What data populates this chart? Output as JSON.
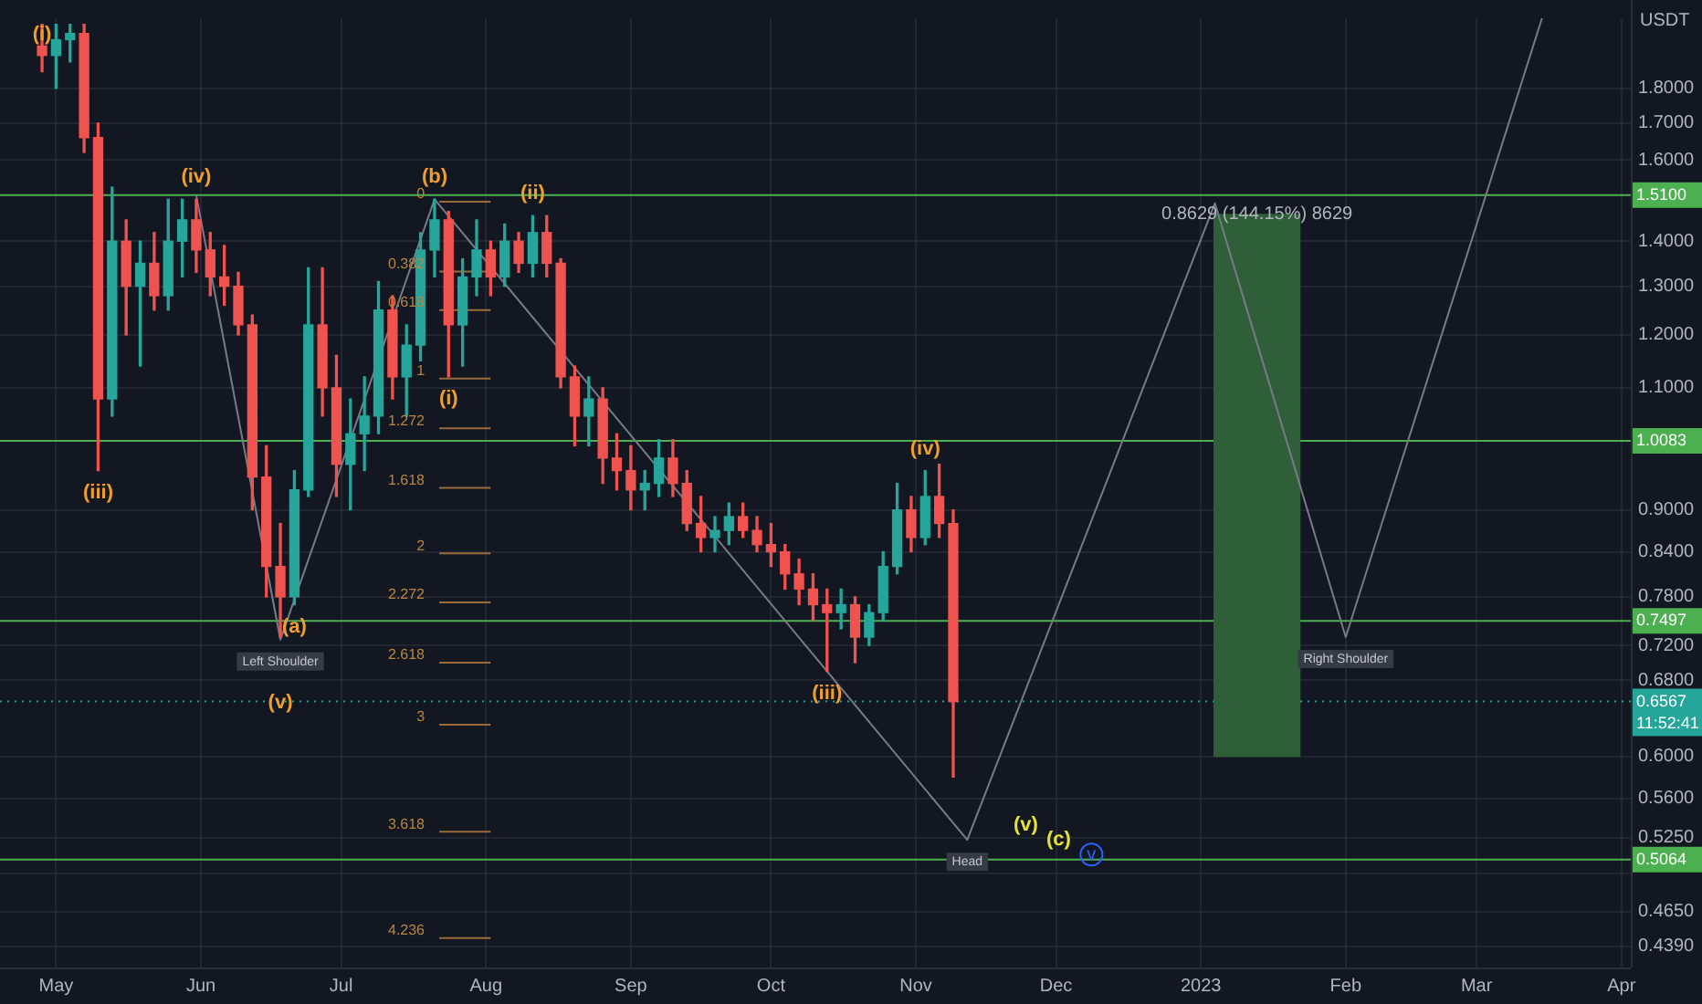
{
  "chart_data": {
    "type": "candlestick",
    "ylabel": "USDT",
    "log": "y",
    "grid": true,
    "xlim": [
      "2022-04-19",
      "2023-04-03"
    ],
    "xticks": [
      {
        "value": "2022-05-01",
        "label": "May"
      },
      {
        "value": "2022-06-01",
        "label": "Jun"
      },
      {
        "value": "2022-07-01",
        "label": "Jul"
      },
      {
        "value": "2022-08-01",
        "label": "Aug"
      },
      {
        "value": "2022-09-01",
        "label": "Sep"
      },
      {
        "value": "2022-10-01",
        "label": "Oct"
      },
      {
        "value": "2022-11-01",
        "label": "Nov"
      },
      {
        "value": "2022-12-01",
        "label": "Dec"
      },
      {
        "value": "2023-01-01",
        "label": "2023"
      },
      {
        "value": "2023-02-01",
        "label": "Feb"
      },
      {
        "value": "2023-03-01",
        "label": "Mar"
      },
      {
        "value": "2023-04-01",
        "label": "Apr"
      }
    ],
    "ylim": [
      0.424,
      2.02
    ],
    "yticks": [
      {
        "value": 1.8,
        "label": "1.8000"
      },
      {
        "value": 1.7,
        "label": "1.7000"
      },
      {
        "value": 1.6,
        "label": "1.6000"
      },
      {
        "value": 1.4,
        "label": "1.4000"
      },
      {
        "value": 1.3,
        "label": "1.3000"
      },
      {
        "value": 1.2,
        "label": "1.2000"
      },
      {
        "value": 1.1,
        "label": "1.1000"
      },
      {
        "value": 0.9,
        "label": "0.9000"
      },
      {
        "value": 0.84,
        "label": "0.8400"
      },
      {
        "value": 0.78,
        "label": "0.7800"
      },
      {
        "value": 0.72,
        "label": "0.7200"
      },
      {
        "value": 0.68,
        "label": "0.6800"
      },
      {
        "value": 0.6,
        "label": "0.6000"
      },
      {
        "value": 0.56,
        "label": "0.5600"
      },
      {
        "value": 0.525,
        "label": "0.5250"
      },
      {
        "value": 0.495,
        "label": null
      },
      {
        "value": 0.465,
        "label": "0.4650"
      },
      {
        "value": 0.439,
        "label": "0.4390"
      }
    ],
    "series": [
      {
        "type": "candlestick",
        "x": [
          "2022-04-28",
          "2022-05-01",
          "2022-05-04",
          "2022-05-07",
          "2022-05-10",
          "2022-05-13",
          "2022-05-16",
          "2022-05-19",
          "2022-05-22",
          "2022-05-25",
          "2022-05-28",
          "2022-05-31",
          "2022-06-03",
          "2022-06-06",
          "2022-06-09",
          "2022-06-12",
          "2022-06-15",
          "2022-06-18",
          "2022-06-21",
          "2022-06-24",
          "2022-06-27",
          "2022-06-30",
          "2022-07-03",
          "2022-07-06",
          "2022-07-09",
          "2022-07-12",
          "2022-07-15",
          "2022-07-18",
          "2022-07-21",
          "2022-07-24",
          "2022-07-27",
          "2022-07-30",
          "2022-08-02",
          "2022-08-05",
          "2022-08-08",
          "2022-08-11",
          "2022-08-14",
          "2022-08-17",
          "2022-08-20",
          "2022-08-23",
          "2022-08-26",
          "2022-08-29",
          "2022-09-01",
          "2022-09-04",
          "2022-09-07",
          "2022-09-10",
          "2022-09-13",
          "2022-09-16",
          "2022-09-19",
          "2022-09-22",
          "2022-09-25",
          "2022-09-28",
          "2022-10-01",
          "2022-10-04",
          "2022-10-07",
          "2022-10-10",
          "2022-10-13",
          "2022-10-16",
          "2022-10-19",
          "2022-10-22",
          "2022-10-25",
          "2022-10-28",
          "2022-10-31",
          "2022-11-03",
          "2022-11-06",
          "2022-11-09"
        ],
        "ohlc": [
          [
            1.93,
            2.0,
            1.85,
            1.9
          ],
          [
            1.9,
            2.0,
            1.8,
            1.95
          ],
          [
            1.95,
            2.0,
            1.88,
            1.97
          ],
          [
            1.97,
            2.0,
            1.62,
            1.66
          ],
          [
            1.66,
            1.7,
            0.96,
            1.08
          ],
          [
            1.08,
            1.53,
            1.05,
            1.4
          ],
          [
            1.4,
            1.45,
            1.2,
            1.3
          ],
          [
            1.3,
            1.4,
            1.14,
            1.35
          ],
          [
            1.35,
            1.42,
            1.25,
            1.28
          ],
          [
            1.28,
            1.5,
            1.25,
            1.4
          ],
          [
            1.4,
            1.5,
            1.32,
            1.45
          ],
          [
            1.45,
            1.5,
            1.33,
            1.38
          ],
          [
            1.38,
            1.42,
            1.28,
            1.32
          ],
          [
            1.32,
            1.39,
            1.26,
            1.3
          ],
          [
            1.3,
            1.33,
            1.2,
            1.22
          ],
          [
            1.22,
            1.24,
            0.9,
            0.95
          ],
          [
            0.95,
            1.0,
            0.78,
            0.82
          ],
          [
            0.82,
            0.88,
            0.73,
            0.78
          ],
          [
            0.78,
            0.96,
            0.77,
            0.93
          ],
          [
            0.93,
            1.34,
            0.92,
            1.22
          ],
          [
            1.22,
            1.34,
            1.05,
            1.1
          ],
          [
            1.1,
            1.16,
            0.92,
            0.97
          ],
          [
            0.97,
            1.08,
            0.9,
            1.02
          ],
          [
            1.02,
            1.12,
            0.96,
            1.05
          ],
          [
            1.05,
            1.31,
            1.02,
            1.25
          ],
          [
            1.25,
            1.28,
            1.08,
            1.12
          ],
          [
            1.12,
            1.22,
            1.05,
            1.18
          ],
          [
            1.18,
            1.42,
            1.15,
            1.38
          ],
          [
            1.38,
            1.5,
            1.32,
            1.45
          ],
          [
            1.45,
            1.47,
            1.12,
            1.22
          ],
          [
            1.22,
            1.36,
            1.14,
            1.32
          ],
          [
            1.32,
            1.45,
            1.28,
            1.38
          ],
          [
            1.38,
            1.4,
            1.28,
            1.32
          ],
          [
            1.32,
            1.44,
            1.3,
            1.4
          ],
          [
            1.4,
            1.42,
            1.33,
            1.35
          ],
          [
            1.35,
            1.46,
            1.32,
            1.42
          ],
          [
            1.42,
            1.46,
            1.32,
            1.35
          ],
          [
            1.35,
            1.36,
            1.1,
            1.12
          ],
          [
            1.12,
            1.14,
            1.0,
            1.05
          ],
          [
            1.05,
            1.12,
            1.0,
            1.08
          ],
          [
            1.08,
            1.1,
            0.94,
            0.98
          ],
          [
            0.98,
            1.02,
            0.93,
            0.96
          ],
          [
            0.96,
            1.0,
            0.9,
            0.93
          ],
          [
            0.93,
            0.96,
            0.9,
            0.94
          ],
          [
            0.94,
            1.01,
            0.92,
            0.98
          ],
          [
            0.98,
            1.01,
            0.92,
            0.94
          ],
          [
            0.94,
            0.96,
            0.87,
            0.88
          ],
          [
            0.88,
            0.92,
            0.84,
            0.86
          ],
          [
            0.86,
            0.89,
            0.84,
            0.87
          ],
          [
            0.87,
            0.91,
            0.85,
            0.89
          ],
          [
            0.89,
            0.91,
            0.86,
            0.87
          ],
          [
            0.87,
            0.89,
            0.84,
            0.85
          ],
          [
            0.85,
            0.88,
            0.82,
            0.84
          ],
          [
            0.84,
            0.85,
            0.79,
            0.81
          ],
          [
            0.81,
            0.83,
            0.77,
            0.79
          ],
          [
            0.79,
            0.81,
            0.75,
            0.77
          ],
          [
            0.77,
            0.79,
            0.69,
            0.76
          ],
          [
            0.76,
            0.79,
            0.74,
            0.77
          ],
          [
            0.77,
            0.78,
            0.7,
            0.73
          ],
          [
            0.73,
            0.77,
            0.72,
            0.76
          ],
          [
            0.76,
            0.84,
            0.75,
            0.82
          ],
          [
            0.82,
            0.94,
            0.81,
            0.9
          ],
          [
            0.9,
            0.92,
            0.84,
            0.86
          ],
          [
            0.86,
            0.96,
            0.85,
            0.92
          ],
          [
            0.92,
            0.97,
            0.86,
            0.88
          ],
          [
            0.88,
            0.9,
            0.58,
            0.6567
          ]
        ]
      },
      {
        "type": "line",
        "color": "#787b86",
        "x": [
          "2022-05-31",
          "2022-06-18",
          "2022-07-21",
          "2022-11-12",
          "2023-01-04",
          "2023-02-01",
          "2023-03-15"
        ],
        "values": [
          1.51,
          0.727,
          1.5,
          0.523,
          1.49,
          0.73,
          2.02
        ]
      },
      {
        "type": "bar",
        "color": "#2e5f38",
        "x": [
          "2023-01-13"
        ],
        "values": [
          0.8629
        ],
        "base": [
          0.6
        ]
      },
      {
        "type": "line",
        "color": "#9a6a3a",
        "x": [
          "2022-07-22",
          "2022-08-02"
        ],
        "values": [
          1.494,
          1.494
        ]
      },
      {
        "type": "line",
        "color": "#9a6a3a",
        "x": [
          "2022-07-22",
          "2022-08-02"
        ],
        "values": [
          1.332,
          1.332
        ]
      },
      {
        "type": "line",
        "color": "#9a6a3a",
        "x": [
          "2022-07-22",
          "2022-08-02"
        ],
        "values": [
          1.25,
          1.25
        ]
      },
      {
        "type": "line",
        "color": "#9a6a3a",
        "x": [
          "2022-07-22",
          "2022-08-02"
        ],
        "values": [
          1.117,
          1.117
        ]
      },
      {
        "type": "line",
        "color": "#9a6a3a",
        "x": [
          "2022-07-22",
          "2022-08-02"
        ],
        "values": [
          1.029,
          1.029
        ]
      },
      {
        "type": "line",
        "color": "#9a6a3a",
        "x": [
          "2022-07-22",
          "2022-08-02"
        ],
        "values": [
          0.933,
          0.933
        ]
      },
      {
        "type": "line",
        "color": "#9a6a3a",
        "x": [
          "2022-07-22",
          "2022-08-02"
        ],
        "values": [
          0.838,
          0.838
        ]
      },
      {
        "type": "line",
        "color": "#9a6a3a",
        "x": [
          "2022-07-22",
          "2022-08-02"
        ],
        "values": [
          0.773,
          0.773
        ]
      },
      {
        "type": "line",
        "color": "#9a6a3a",
        "x": [
          "2022-07-22",
          "2022-08-02"
        ],
        "values": [
          0.7,
          0.7
        ]
      },
      {
        "type": "line",
        "color": "#9a6a3a",
        "x": [
          "2022-07-22",
          "2022-08-02"
        ],
        "values": [
          0.632,
          0.632
        ]
      },
      {
        "type": "line",
        "color": "#9a6a3a",
        "x": [
          "2022-07-22",
          "2022-08-02"
        ],
        "values": [
          0.53,
          0.53
        ]
      },
      {
        "type": "line",
        "color": "#9a6a3a",
        "x": [
          "2022-07-22",
          "2022-08-02"
        ],
        "values": [
          0.445,
          0.445
        ]
      }
    ],
    "ref_lines": [
      {
        "axis": "y",
        "value": 1.51,
        "label": "1.5100",
        "color": "#4caf50",
        "line_style": "solid"
      },
      {
        "axis": "y",
        "value": 1.0083,
        "label": "1.0083",
        "color": "#4caf50",
        "line_style": "solid"
      },
      {
        "axis": "y",
        "value": 0.7497,
        "label": "0.7497",
        "color": "#4caf50",
        "line_style": "solid"
      },
      {
        "axis": "y",
        "value": 0.6567,
        "label": "0.6567\n11:52:41",
        "color": "#26a69a",
        "line_style": "dotted"
      },
      {
        "axis": "y",
        "value": 0.5064,
        "label": "0.5064",
        "color": "#4caf50",
        "line_style": "solid"
      }
    ],
    "annotations": [
      {
        "text": "(i)",
        "x": "2022-04-28",
        "y": 2.0
      },
      {
        "text": "(iii)",
        "x": "2022-05-10",
        "y": 0.96
      },
      {
        "text": "(iv)",
        "x": "2022-05-31",
        "y": 1.5
      },
      {
        "text": "Left Shoulder",
        "x": "2022-06-18",
        "y": 0.727
      },
      {
        "text": "(v)",
        "x": "2022-06-18",
        "y": 0.73
      },
      {
        "text": "(a)",
        "x": "2022-06-21",
        "y": 0.77
      },
      {
        "text": "(b)",
        "x": "2022-07-21",
        "y": 1.5
      },
      {
        "text": "(i)",
        "x": "2022-07-24",
        "y": 1.12
      },
      {
        "text": "(ii)",
        "x": "2022-08-11",
        "y": 1.46
      },
      {
        "text": "(iii)",
        "x": "2022-10-13",
        "y": 0.69
      },
      {
        "text": "(iv)",
        "x": "2022-11-03",
        "y": 0.96
      },
      {
        "text": "Head",
        "x": "2022-11-12",
        "y": 0.523
      },
      "(v)",
      "(c)",
      "v",
      {
        "text": "Right Shoulder",
        "x": "2023-02-01",
        "y": 0.73
      },
      {
        "text": "0.8629 (144.15%) 8629",
        "x": "2023-01-13",
        "y": 1.4629
      },
      {
        "text": "0",
        "x": "2022-07-22",
        "y": 1.494
      },
      {
        "text": "0.382",
        "x": "2022-07-22",
        "y": 1.332
      },
      {
        "text": "0.618",
        "x": "2022-07-22",
        "y": 1.25
      },
      {
        "text": "1",
        "x": "2022-07-22",
        "y": 1.117
      },
      {
        "text": "1.272",
        "x": "2022-07-22",
        "y": 1.029
      },
      {
        "text": "1.618",
        "x": "2022-07-22",
        "y": 0.933
      },
      {
        "text": "2",
        "x": "2022-07-22",
        "y": 0.838
      },
      {
        "text": "2.272",
        "x": "2022-07-22",
        "y": 0.773
      },
      {
        "text": "2.618",
        "x": "2022-07-22",
        "y": 0.7
      },
      {
        "text": "3",
        "x": "2022-07-22",
        "y": 0.632
      },
      {
        "text": "3.618",
        "x": "2022-07-22",
        "y": 0.53
      },
      {
        "text": "4.236",
        "x": "2022-07-22",
        "y": 0.445
      }
    ]
  }
}
